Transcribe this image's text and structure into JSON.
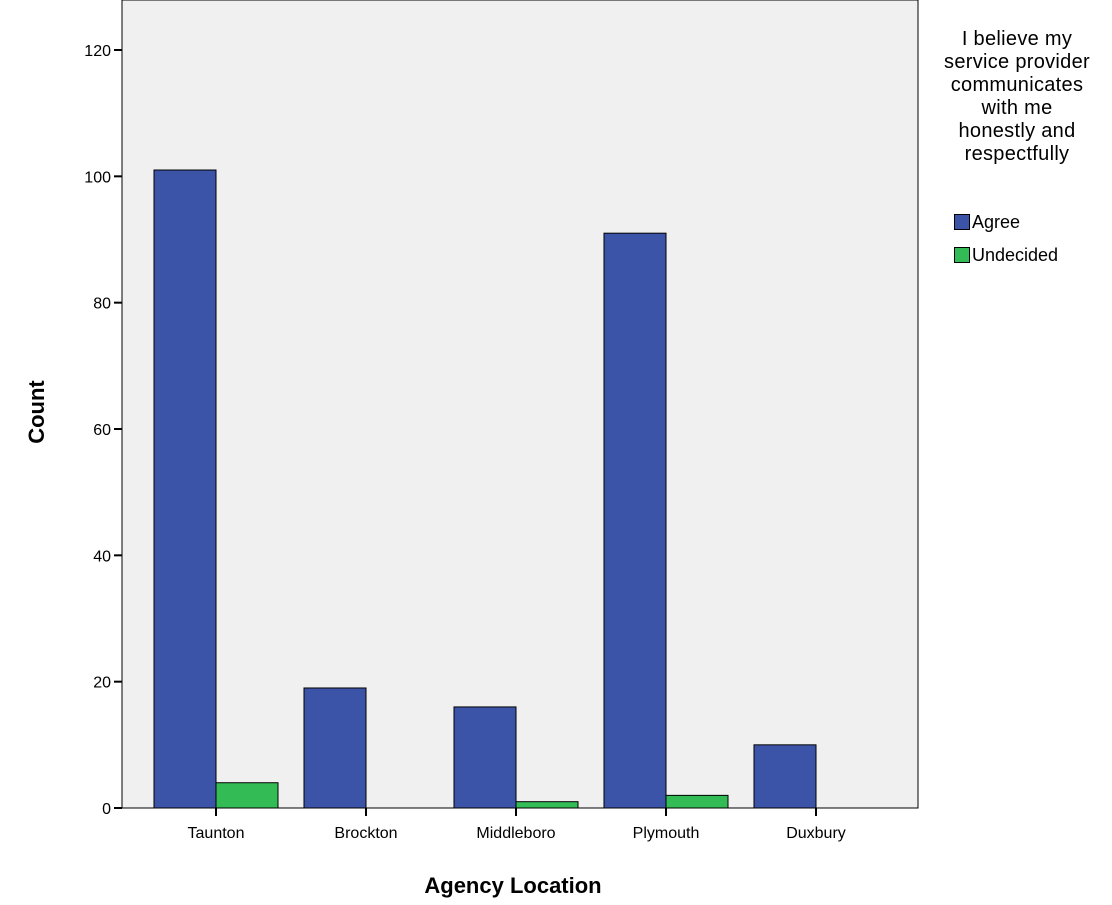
{
  "chart_data": {
    "type": "bar",
    "title": "",
    "xlabel": "Agency Location",
    "ylabel": "Count",
    "ylim": [
      0,
      125
    ],
    "yticks": [
      0,
      20,
      40,
      60,
      80,
      100,
      120
    ],
    "categories": [
      "Taunton",
      "Brockton",
      "Middleboro",
      "Plymouth",
      "Duxbury"
    ],
    "series": [
      {
        "name": "Agree",
        "color": "#3c54a8",
        "values": [
          101,
          19,
          16,
          91,
          10
        ]
      },
      {
        "name": "Undecided",
        "color": "#33bb55",
        "values": [
          4,
          0,
          1,
          2,
          0
        ]
      }
    ],
    "legend_title": "I believe my service provider communicates with me honestly and respectfully",
    "legend_title_lines": [
      "I believe my",
      "service provider",
      "communicates",
      "with me",
      "honestly and",
      "respectfully"
    ],
    "legend_position": "right",
    "plot_background": "#f0f0f0",
    "grid": false
  }
}
